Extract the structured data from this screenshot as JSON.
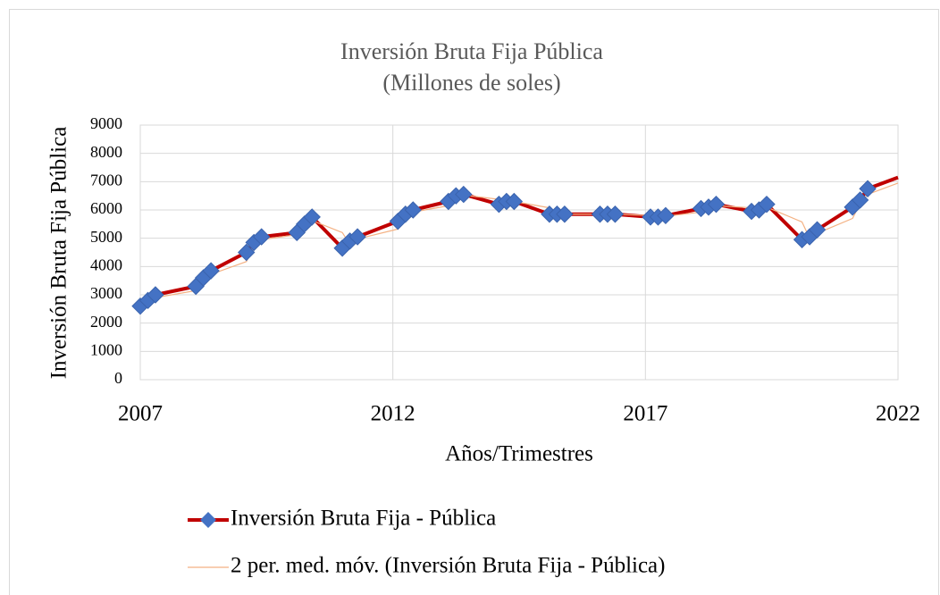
{
  "chart_data": {
    "type": "line",
    "title": "Inversión Bruta Fija Pública",
    "subtitle": "(Millones de soles)",
    "x_label": "Años/Trimestres",
    "y_label": "Inversión Bruta Fija Pública",
    "x": [
      2007.0,
      2007.15,
      2007.3,
      2008.1,
      2008.25,
      2008.4,
      2009.1,
      2009.25,
      2009.4,
      2010.1,
      2010.25,
      2010.4,
      2011.0,
      2011.15,
      2011.3,
      2012.1,
      2012.25,
      2012.4,
      2013.1,
      2013.25,
      2013.4,
      2014.1,
      2014.25,
      2014.4,
      2015.1,
      2015.25,
      2015.4,
      2016.1,
      2016.25,
      2016.4,
      2017.1,
      2017.25,
      2017.4,
      2018.1,
      2018.25,
      2018.4,
      2019.1,
      2019.25,
      2019.4,
      2020.1,
      2020.25,
      2020.4,
      2021.1,
      2021.25,
      2021.4,
      2022.0
    ],
    "series": [
      {
        "name": "Inversión Bruta Fija - Pública",
        "color": "#c00000",
        "marker_color": "#4472c4",
        "values": [
          2600,
          2800,
          3000,
          3300,
          3600,
          3850,
          4500,
          4850,
          5050,
          5200,
          5500,
          5750,
          4650,
          4900,
          5050,
          5600,
          5850,
          6000,
          6300,
          6500,
          6550,
          6200,
          6300,
          6300,
          5850,
          5850,
          5850,
          5850,
          5850,
          5850,
          5750,
          5750,
          5800,
          6050,
          6100,
          6200,
          5950,
          6000,
          6200,
          4950,
          5050,
          5300,
          6100,
          6350,
          6750,
          7150
        ]
      },
      {
        "name": "2 per. med. móv. (Inversión Bruta Fija - Pública)",
        "color": "#f4b183",
        "values": [
          null,
          2700,
          2900,
          3150,
          3450,
          3725,
          4175,
          4675,
          4950,
          5125,
          5350,
          5625,
          5200,
          4775,
          4975,
          5325,
          5725,
          5925,
          6150,
          6400,
          6525,
          6375,
          6250,
          6300,
          6075,
          5850,
          5850,
          5850,
          5850,
          5850,
          5800,
          5750,
          5775,
          5925,
          6075,
          6150,
          6075,
          5975,
          6100,
          5575,
          5000,
          5175,
          5700,
          6225,
          6550,
          6950
        ]
      }
    ],
    "xlim": [
      2007,
      2022
    ],
    "xticks": [
      2007,
      2012,
      2017,
      2022
    ],
    "ylim": [
      0,
      9000
    ],
    "yticks": [
      0,
      1000,
      2000,
      3000,
      4000,
      5000,
      6000,
      7000,
      8000,
      9000
    ],
    "grid": true,
    "legend": "bottom"
  }
}
